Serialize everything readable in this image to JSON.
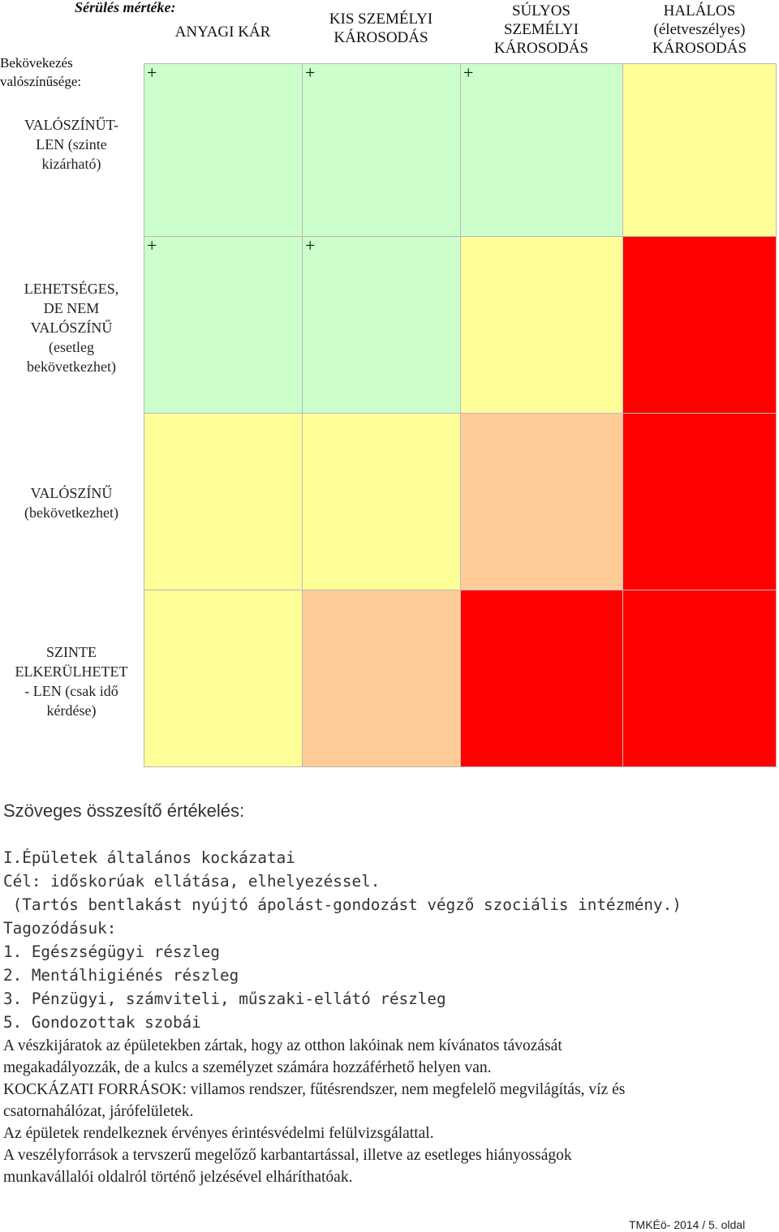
{
  "matrix": {
    "corner_top": "Sérülés mértéke:",
    "corner_bottom": "Bekövekezés valószínűsége:",
    "columns": [
      "ANYAGI KÁR",
      "KIS SZEMÉLYI KÁROSODÁS",
      "SÚLYOS SZEMÉLYI KÁROSODÁS",
      "HALÁLOS (életveszélyes) KÁROSODÁS"
    ],
    "rows": [
      {
        "label": [
          "VALÓSZÍNŰT-",
          "LEN (szinte",
          "kizárható)"
        ],
        "cells": [
          {
            "color": "#ccffcc",
            "mark": "+"
          },
          {
            "color": "#ccffcc",
            "mark": "+"
          },
          {
            "color": "#ccffcc",
            "mark": "+"
          },
          {
            "color": "#ffff99",
            "mark": ""
          }
        ]
      },
      {
        "label": [
          "LEHETSÉGES,",
          "DE NEM",
          "VALÓSZÍNŰ",
          "(esetleg",
          "bekövetkezhet)"
        ],
        "cells": [
          {
            "color": "#ccffcc",
            "mark": "+"
          },
          {
            "color": "#ccffcc",
            "mark": "+"
          },
          {
            "color": "#ffff99",
            "mark": ""
          },
          {
            "color": "#ff0000",
            "mark": ""
          }
        ]
      },
      {
        "label": [
          "VALÓSZÍNŰ",
          "(bekövetkezhet)"
        ],
        "cells": [
          {
            "color": "#ffff99",
            "mark": ""
          },
          {
            "color": "#ffff99",
            "mark": ""
          },
          {
            "color": "#ffcc99",
            "mark": ""
          },
          {
            "color": "#ff0000",
            "mark": ""
          }
        ]
      },
      {
        "label": [
          "SZINTE",
          "ELKERÜLHETET",
          "- LEN (csak idő",
          "kérdése)"
        ],
        "cells": [
          {
            "color": "#ffff99",
            "mark": ""
          },
          {
            "color": "#ffcc99",
            "mark": ""
          },
          {
            "color": "#ff0000",
            "mark": ""
          },
          {
            "color": "#ff0000",
            "mark": ""
          }
        ]
      }
    ]
  },
  "summary": {
    "title": "Szöveges összesítő értékelés:",
    "mono_lines": [
      "I.Épületek általános kockázatai",
      "Cél: időskorúak ellátása, elhelyezéssel.",
      " (Tartós bentlakást nyújtó ápolást-gondozást végző szociális intézmény.)",
      "Tagozódásuk:",
      "1. Egészségügyi részleg",
      "2. Mentálhigiénés részleg",
      "3. Pénzügyi, számviteli, műszaki-ellátó részleg",
      "5. Gondozottak szobái"
    ],
    "serif_lines": [
      "A vészkijáratok az épületekben zártak, hogy az otthon lakóinak nem kívánatos távozását",
      "megakadályozzák, de a kulcs a személyzet számára hozzáférhető helyen van.",
      "KOCKÁZATI FORRÁSOK: villamos rendszer, fűtésrendszer, nem megfelelő megvilágítás, víz és",
      "csatornahálózat, járófelületek.",
      "Az épületek rendelkeznek érvényes érintésvédelmi felülvizsgálattal.",
      "A veszélyforrások a tervszerű megelőző karbantartással, illetve az esetleges hiányosságok",
      "munkavállalói oldalról történő jelzésével elháríthatóak."
    ]
  },
  "footer": {
    "text": "TMKÉö- 2014  / 5. oldal"
  }
}
